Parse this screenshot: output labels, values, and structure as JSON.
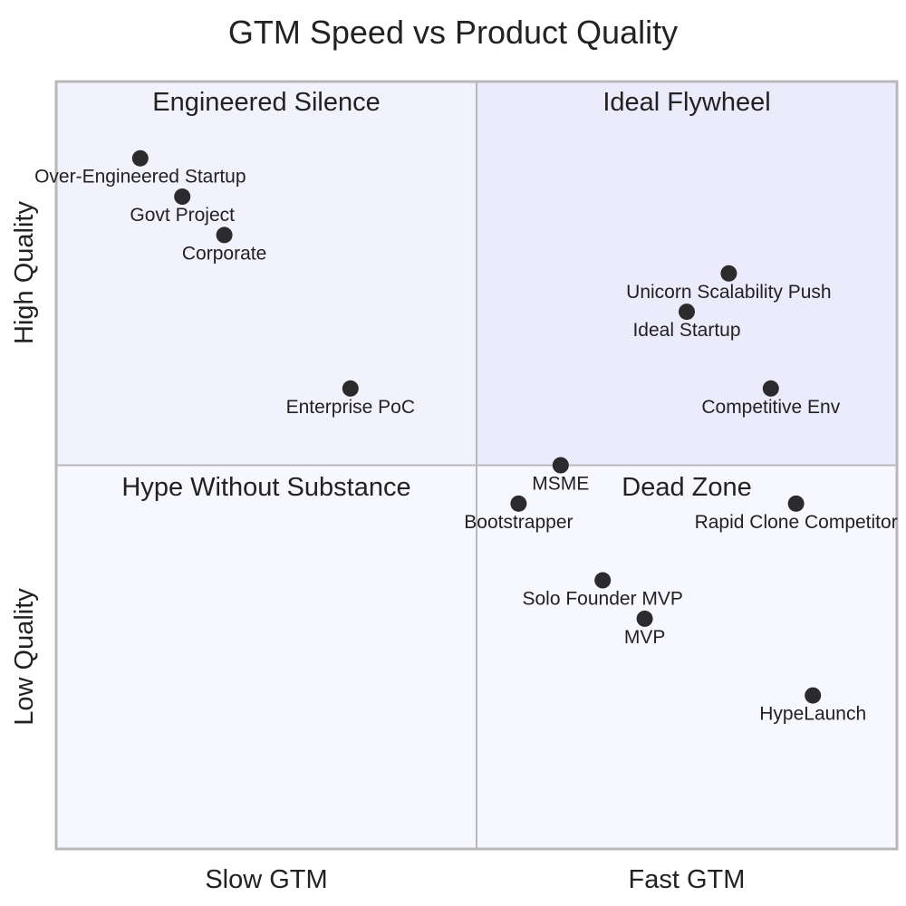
{
  "chart_data": {
    "type": "scatter",
    "subtype": "quadrant",
    "title": "GTM Speed vs Product Quality",
    "x_axis": {
      "low": "Slow GTM",
      "high": "Fast GTM"
    },
    "y_axis": {
      "low": "Low Quality",
      "high": "High Quality"
    },
    "xlim": [
      0,
      1
    ],
    "ylim": [
      0,
      1
    ],
    "quadrants": {
      "top_right": "Ideal Flywheel",
      "top_left": "Engineered Silence",
      "bottom_left": "Hype Without Substance",
      "bottom_right": "Dead Zone"
    },
    "colors": {
      "top_right": "#ebebfc",
      "top_left": "#f2f2fd",
      "bottom_left": "#f7f7fe",
      "bottom_right": "#f7f7fe",
      "point": "#2b2b2e",
      "grid": "#b8b8bc"
    },
    "points": [
      {
        "label": "Over-Engineered Startup",
        "x": 0.1,
        "y": 0.9
      },
      {
        "label": "Govt Project",
        "x": 0.15,
        "y": 0.85
      },
      {
        "label": "Corporate",
        "x": 0.2,
        "y": 0.8
      },
      {
        "label": "Enterprise PoC",
        "x": 0.35,
        "y": 0.6
      },
      {
        "label": "Unicorn Scalability Push",
        "x": 0.8,
        "y": 0.75
      },
      {
        "label": "Ideal Startup",
        "x": 0.75,
        "y": 0.7
      },
      {
        "label": "Competitive Env",
        "x": 0.85,
        "y": 0.6
      },
      {
        "label": "MSME",
        "x": 0.6,
        "y": 0.5
      },
      {
        "label": "Bootstrapper",
        "x": 0.55,
        "y": 0.45
      },
      {
        "label": "Rapid Clone Competitor",
        "x": 0.88,
        "y": 0.45
      },
      {
        "label": "Solo Founder MVP",
        "x": 0.65,
        "y": 0.35
      },
      {
        "label": "MVP",
        "x": 0.7,
        "y": 0.3
      },
      {
        "label": "HypeLaunch",
        "x": 0.9,
        "y": 0.2
      }
    ]
  }
}
